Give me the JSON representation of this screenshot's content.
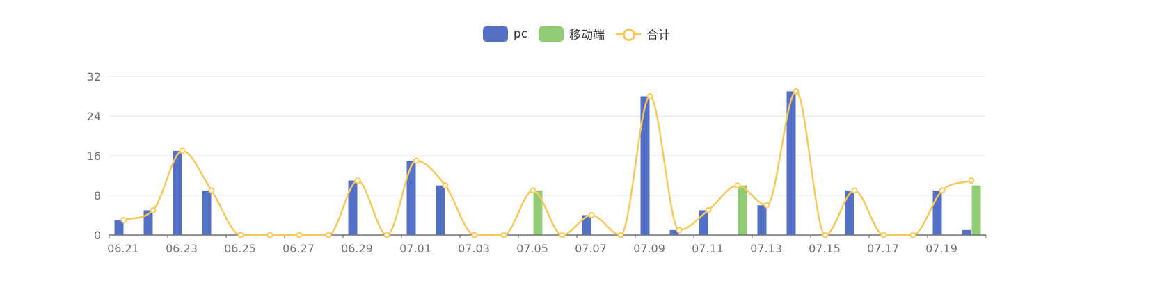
{
  "chart_data": {
    "type": "bar",
    "categories": [
      "06.21",
      "06.22",
      "06.23",
      "06.24",
      "06.25",
      "06.26",
      "06.27",
      "06.28",
      "06.29",
      "06.30",
      "07.01",
      "07.02",
      "07.03",
      "07.04",
      "07.05",
      "07.06",
      "07.07",
      "07.08",
      "07.09",
      "07.10",
      "07.11",
      "07.12",
      "07.13",
      "07.14",
      "07.15",
      "07.16",
      "07.17",
      "07.18",
      "07.19",
      "07.20"
    ],
    "x_tick_labels": [
      "06.21",
      "06.23",
      "06.25",
      "06.27",
      "06.29",
      "07.01",
      "07.03",
      "07.05",
      "07.07",
      "07.09",
      "07.11",
      "07.13",
      "07.15",
      "07.17",
      "07.19"
    ],
    "series": [
      {
        "name": "pc",
        "type": "bar",
        "color": "#5470c6",
        "values": [
          3,
          5,
          17,
          9,
          0,
          0,
          0,
          0,
          11,
          0,
          15,
          10,
          0,
          0,
          0,
          0,
          4,
          0,
          28,
          1,
          5,
          0,
          6,
          29,
          0,
          9,
          0,
          0,
          9,
          1
        ]
      },
      {
        "name": "移动端",
        "type": "bar",
        "color": "#91cc75",
        "values": [
          0,
          0,
          0,
          0,
          0,
          0,
          0,
          0,
          0,
          0,
          0,
          0,
          0,
          0,
          9,
          0,
          0,
          0,
          0,
          0,
          0,
          10,
          0,
          0,
          0,
          0,
          0,
          0,
          0,
          10
        ]
      },
      {
        "name": "合计",
        "type": "line",
        "color": "#f8c858",
        "values": [
          3,
          5,
          17,
          9,
          0,
          0,
          0,
          0,
          11,
          0,
          15,
          10,
          0,
          0,
          9,
          0,
          4,
          0,
          28,
          1,
          5,
          10,
          6,
          29,
          0,
          9,
          0,
          0,
          9,
          11
        ]
      }
    ],
    "y_ticks": [
      0,
      8,
      16,
      24,
      32
    ],
    "ylim": [
      0,
      32
    ],
    "grid": true,
    "legend_position": "top-center"
  }
}
